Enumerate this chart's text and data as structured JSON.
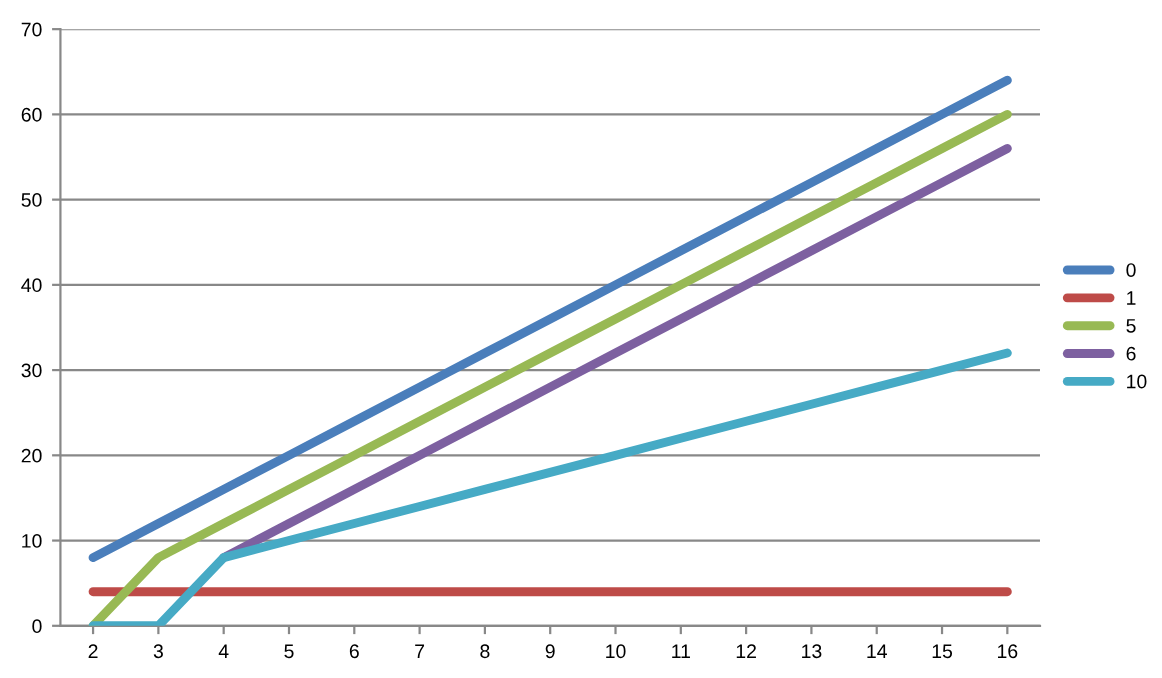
{
  "chart_data": {
    "type": "line",
    "categories": [
      "2",
      "3",
      "4",
      "5",
      "6",
      "7",
      "8",
      "9",
      "10",
      "11",
      "12",
      "13",
      "14",
      "15",
      "16"
    ],
    "series": [
      {
        "name": "0",
        "color": "#4a7ebb",
        "values": [
          8,
          12,
          16,
          20,
          24,
          28,
          32,
          36,
          40,
          44,
          48,
          52,
          56,
          60,
          64
        ]
      },
      {
        "name": "1",
        "color": "#be4b48",
        "values": [
          4,
          4,
          4,
          4,
          4,
          4,
          4,
          4,
          4,
          4,
          4,
          4,
          4,
          4,
          4
        ]
      },
      {
        "name": "5",
        "color": "#98b954",
        "values": [
          0,
          8,
          12,
          16,
          20,
          24,
          28,
          32,
          36,
          40,
          44,
          48,
          52,
          56,
          60
        ]
      },
      {
        "name": "6",
        "color": "#7d60a0",
        "values": [
          null,
          null,
          8,
          12,
          16,
          20,
          24,
          28,
          32,
          36,
          40,
          44,
          48,
          52,
          56
        ]
      },
      {
        "name": "10",
        "color": "#46aac5",
        "values": [
          0,
          0,
          8,
          10,
          12,
          14,
          16,
          18,
          20,
          22,
          24,
          26,
          28,
          30,
          32
        ]
      }
    ],
    "ylim": [
      0,
      70
    ],
    "yticks": [
      0,
      10,
      20,
      30,
      40,
      50,
      60,
      70
    ],
    "grid": "y",
    "legend": "right",
    "marker": "none",
    "line_style": "solid"
  }
}
